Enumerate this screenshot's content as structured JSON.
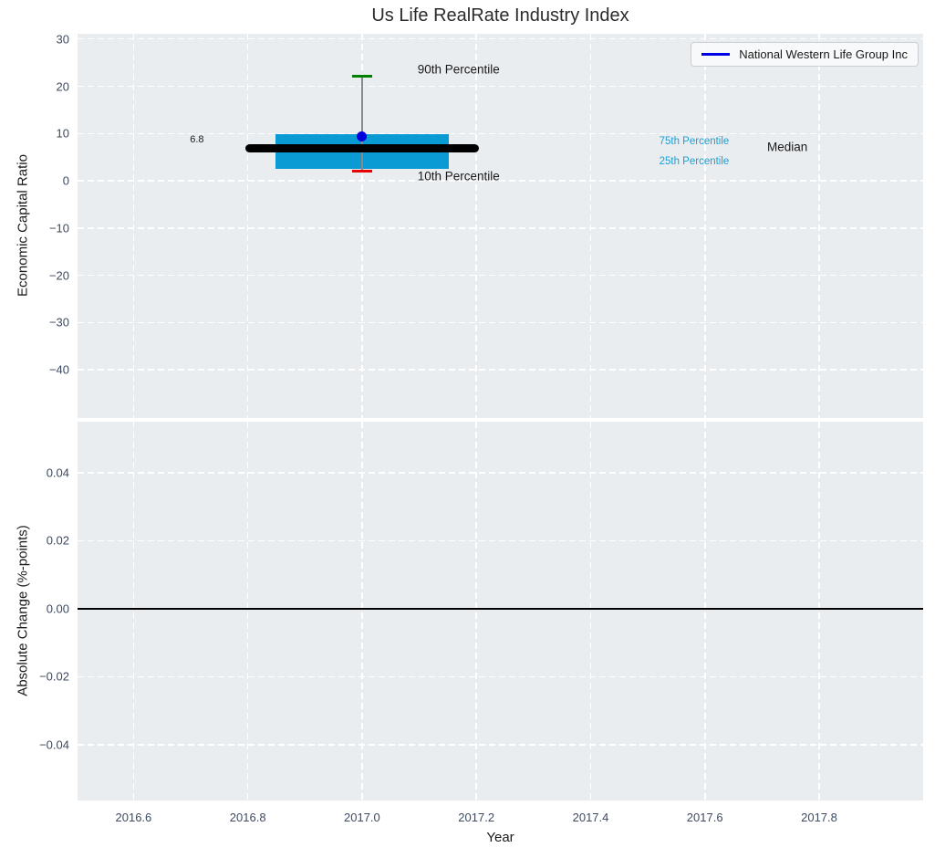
{
  "title": "Us Life RealRate Industry Index",
  "legend": {
    "label": "National Western Life Group Inc"
  },
  "colors": {
    "axes_background": "#eaedf0",
    "grid": "#ffffff",
    "tick_label": "#3e4a5f",
    "axis_label": "#1a1a1a",
    "title": "#2b2b2b",
    "box_fill": "#0a9bd4",
    "percentile_text": "#1b9fd6",
    "median": "#000000",
    "whisker": "#8a8a8a",
    "p90_cap": "#008000",
    "p10_cap": "#e60000",
    "company_marker": "#0000dd",
    "legend_line": "#0000e6",
    "zero_line": "#000000"
  },
  "chart_data": [
    {
      "type": "box",
      "name": "economic-capital-ratio-panel",
      "ylabel": "Economic Capital Ratio",
      "xlim": [
        2016.502,
        2017.982
      ],
      "ylim": [
        -50.2,
        31.1
      ],
      "grid": true,
      "show_xtick_labels": false,
      "xticks": [
        {
          "v": 2016.6,
          "label": "2016.6"
        },
        {
          "v": 2016.8,
          "label": "2016.8"
        },
        {
          "v": 2017.0,
          "label": "2017.0"
        },
        {
          "v": 2017.2,
          "label": "2017.2"
        },
        {
          "v": 2017.4,
          "label": "2017.4"
        },
        {
          "v": 2017.6,
          "label": "2017.6"
        },
        {
          "v": 2017.8,
          "label": "2017.8"
        }
      ],
      "yticks": [
        {
          "v": 30,
          "label": "30"
        },
        {
          "v": 20,
          "label": "20"
        },
        {
          "v": 10,
          "label": "10"
        },
        {
          "v": 0,
          "label": "0"
        },
        {
          "v": -10,
          "label": "−10"
        },
        {
          "v": -20,
          "label": "−20"
        },
        {
          "v": -30,
          "label": "−30"
        },
        {
          "v": -40,
          "label": "−40"
        }
      ],
      "box": {
        "x": 2017.0,
        "median": 6.8,
        "q1": 2.5,
        "q3": 9.9,
        "p10": 2.1,
        "p90": 22.1,
        "company_value": 9.3,
        "box_half_width": 0.152,
        "median_half_width": 0.204,
        "cap_half_width": 0.017
      },
      "annotations": [
        {
          "text": "6.8",
          "x": 2016.711,
          "y": 8.8,
          "size": 11,
          "color": "#1a1a1a",
          "ha": "center"
        },
        {
          "text": "90th Percentile",
          "x": 2017.097,
          "y": 23.6,
          "size": 13.5,
          "color": "#1a1a1a",
          "ha": "left"
        },
        {
          "text": "10th Percentile",
          "x": 2017.097,
          "y": 0.9,
          "size": 13.5,
          "color": "#1a1a1a",
          "ha": "left"
        },
        {
          "text": "75th Percentile",
          "x": 2017.52,
          "y": 8.3,
          "size": 11.5,
          "color": "#1b9fd6",
          "ha": "left"
        },
        {
          "text": "25th Percentile",
          "x": 2017.52,
          "y": 4.0,
          "size": 11.5,
          "color": "#1b9fd6",
          "ha": "left"
        },
        {
          "text": "Median",
          "x": 2017.709,
          "y": 7.1,
          "size": 13.5,
          "color": "#1a1a1a",
          "ha": "left"
        }
      ]
    },
    {
      "type": "line",
      "name": "absolute-change-panel",
      "ylabel": "Absolute Change (%-points)",
      "xlabel": "Year",
      "xlim": [
        2016.502,
        2017.982
      ],
      "ylim": [
        -0.0564,
        0.055
      ],
      "grid": true,
      "show_xtick_labels": true,
      "zero_line": 0.0,
      "series": [
        {
          "name": "National Western Life Group Inc",
          "x": [
            2017.0
          ],
          "y": [
            0.0
          ]
        }
      ],
      "xticks": [
        {
          "v": 2016.6,
          "label": "2016.6"
        },
        {
          "v": 2016.8,
          "label": "2016.8"
        },
        {
          "v": 2017.0,
          "label": "2017.0"
        },
        {
          "v": 2017.2,
          "label": "2017.2"
        },
        {
          "v": 2017.4,
          "label": "2017.4"
        },
        {
          "v": 2017.6,
          "label": "2017.6"
        },
        {
          "v": 2017.8,
          "label": "2017.8"
        }
      ],
      "yticks": [
        {
          "v": 0.04,
          "label": "0.04"
        },
        {
          "v": 0.02,
          "label": "0.02"
        },
        {
          "v": 0.0,
          "label": "0.00"
        },
        {
          "v": -0.02,
          "label": "−0.02"
        },
        {
          "v": -0.04,
          "label": "−0.04"
        }
      ]
    }
  ]
}
